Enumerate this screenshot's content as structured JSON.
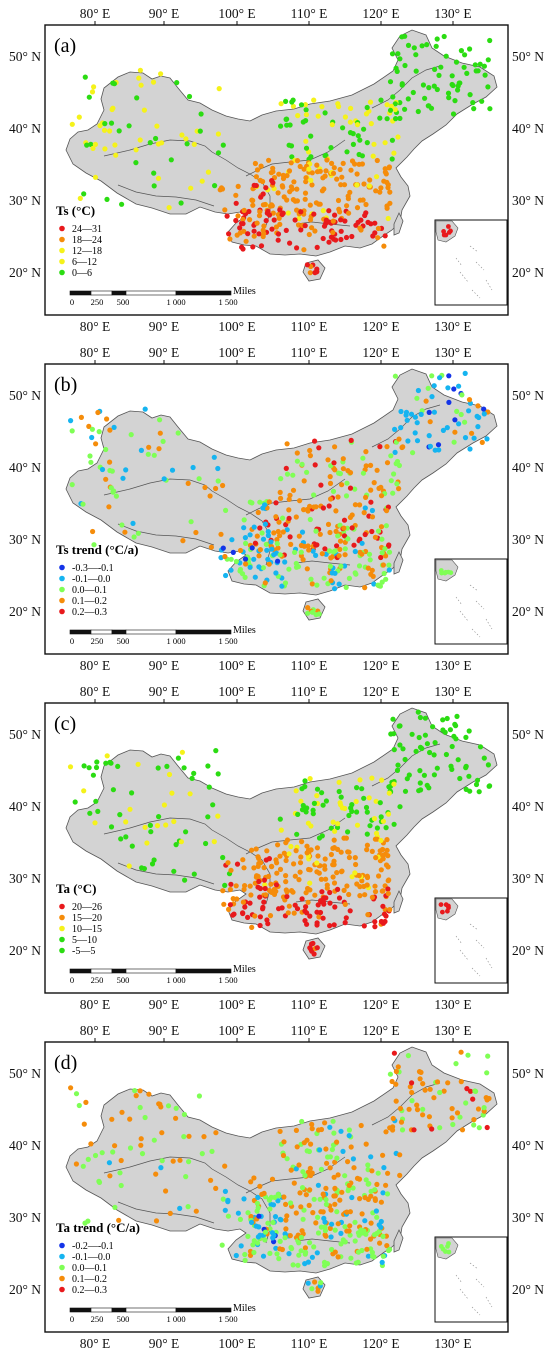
{
  "colors": {
    "land": "#d3d3d3",
    "outline": "#555555",
    "red": "#e8191c",
    "orange": "#f58c0a",
    "yellow": "#f5f21a",
    "lightgreen": "#7fff55",
    "green": "#2bdc12",
    "blue": "#1434e8",
    "cyan": "#15b4f0"
  },
  "axes": {
    "lon_labels": [
      "80° E",
      "90° E",
      "100° E",
      "110° E",
      "120° E",
      "130° E"
    ],
    "lat_labels": [
      "50° N",
      "40° N",
      "30° N",
      "20° N"
    ]
  },
  "scale_bar": {
    "unit": "Miles",
    "ticks": [
      "0",
      "250",
      "500",
      "1 000",
      "1 500"
    ]
  },
  "panels": [
    {
      "label": "(a)",
      "legend_title": "Ts (°C)",
      "classes": [
        {
          "label": "24—31",
          "color": "red"
        },
        {
          "label": "18—24",
          "color": "orange"
        },
        {
          "label": "12—18",
          "color": "yellow"
        },
        {
          "label": "6—12",
          "color": "yellow"
        },
        {
          "label": "0—6",
          "color": "green"
        }
      ]
    },
    {
      "label": "(b)",
      "legend_title": "Ts trend (°C/a)",
      "classes": [
        {
          "label": "-0.3—-0.1",
          "color": "blue"
        },
        {
          "label": "-0.1—0.0",
          "color": "cyan"
        },
        {
          "label": "0.0—0.1",
          "color": "lightgreen"
        },
        {
          "label": "0.1—0.2",
          "color": "orange"
        },
        {
          "label": "0.2—0.3",
          "color": "red"
        }
      ]
    },
    {
      "label": "(c)",
      "legend_title": "Ta (°C)",
      "classes": [
        {
          "label": "20—26",
          "color": "red"
        },
        {
          "label": "15—20",
          "color": "orange"
        },
        {
          "label": "10—15",
          "color": "yellow"
        },
        {
          "label": "5—10",
          "color": "green"
        },
        {
          "label": "-5—5",
          "color": "green"
        }
      ]
    },
    {
      "label": "(d)",
      "legend_title": "Ta trend (°C/a)",
      "classes": [
        {
          "label": "-0.2—-0.1",
          "color": "blue"
        },
        {
          "label": "-0.1—0.0",
          "color": "cyan"
        },
        {
          "label": "0.0—0.1",
          "color": "lightgreen"
        },
        {
          "label": "0.1—0.2",
          "color": "orange"
        },
        {
          "label": "0.2—0.3",
          "color": "red"
        }
      ]
    }
  ]
}
